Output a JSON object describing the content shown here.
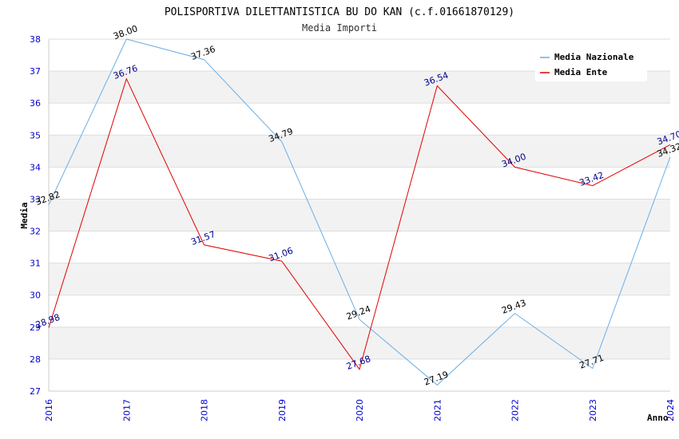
{
  "chart_data": {
    "type": "line",
    "title": "POLISPORTIVA DILETTANTISTICA BU DO KAN (c.f.01661870129)",
    "subtitle": "Media Importi",
    "xlabel": "Anno",
    "ylabel": "Media",
    "categories": [
      "2016",
      "2017",
      "2018",
      "2019",
      "2020",
      "2021",
      "2022",
      "2023",
      "2024"
    ],
    "ylim": [
      27,
      38
    ],
    "yticks": [
      27,
      28,
      29,
      30,
      31,
      32,
      33,
      34,
      35,
      36,
      37,
      38
    ],
    "legend_position": "top-right",
    "series": [
      {
        "name": "Media Nazionale",
        "color": "#6aaee6",
        "label_color": "#000000",
        "values": [
          32.82,
          38.0,
          37.36,
          34.79,
          29.24,
          27.19,
          29.43,
          27.71,
          34.32
        ],
        "labels": [
          "32.82",
          "38.00",
          "37.36",
          "34.79",
          "29.24",
          "27.19",
          "29.43",
          "27.71",
          "34.32"
        ]
      },
      {
        "name": "Media Ente",
        "color": "#e00000",
        "label_color": "#00008b",
        "values": [
          28.98,
          36.76,
          31.57,
          31.06,
          27.68,
          36.54,
          34.0,
          33.42,
          34.7
        ],
        "labels": [
          "28.98",
          "36.76",
          "31.57",
          "31.06",
          "27.68",
          "36.54",
          "34.00",
          "33.42",
          "34.70"
        ]
      }
    ]
  }
}
